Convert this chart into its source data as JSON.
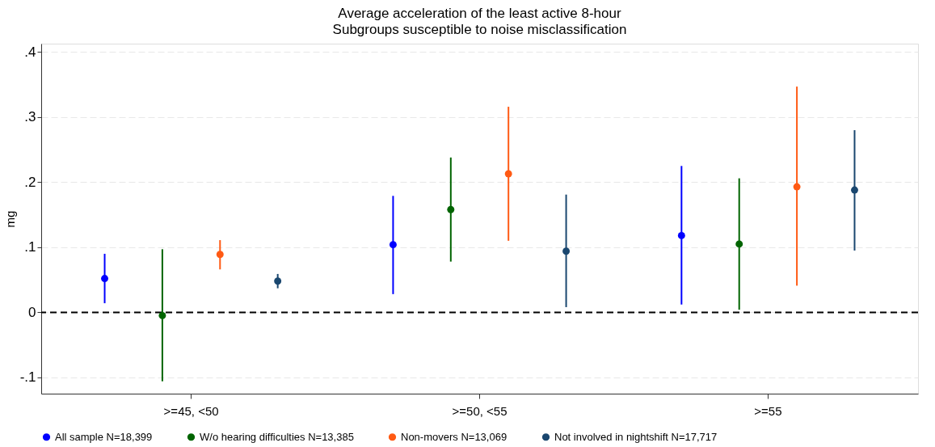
{
  "chart_data": {
    "type": "scatter",
    "title": "Average acceleration of the least active 8-hour",
    "subtitle": "Subgroups susceptible to noise misclassification",
    "ylabel": "mg",
    "categories": [
      ">=45, <50",
      ">=50, <55",
      ">=55"
    ],
    "series": [
      {
        "name": "All sample N=18,399",
        "color": "#0000ff",
        "values": [
          0.052,
          0.104,
          0.118
        ],
        "errors": [
          [
            0.014,
            0.09
          ],
          [
            0.028,
            0.179
          ],
          [
            0.012,
            0.225
          ]
        ]
      },
      {
        "name": "W/o hearing difficulties N=13,385",
        "color": "#006400",
        "values": [
          -0.005,
          0.158,
          0.105
        ],
        "errors": [
          [
            -0.106,
            0.097
          ],
          [
            0.078,
            0.238
          ],
          [
            0.004,
            0.206
          ]
        ]
      },
      {
        "name": "Non-movers N=13,069",
        "color": "#ff5a14",
        "values": [
          0.089,
          0.213,
          0.193
        ],
        "errors": [
          [
            0.066,
            0.111
          ],
          [
            0.11,
            0.316
          ],
          [
            0.041,
            0.347
          ]
        ]
      },
      {
        "name": "Not involved in nightshift N=17,717",
        "color": "#1a476f",
        "values": [
          0.048,
          0.094,
          0.188
        ],
        "errors": [
          [
            0.037,
            0.059
          ],
          [
            0.008,
            0.181
          ],
          [
            0.095,
            0.28
          ]
        ]
      }
    ],
    "ylim": [
      -0.125,
      0.413
    ],
    "yticks": [
      {
        "value": -0.1,
        "label": "-.1"
      },
      0,
      {
        "value": 0.1,
        "label": ".1"
      },
      {
        "value": 0.2,
        "label": ".2"
      },
      {
        "value": 0.3,
        "label": ".3"
      },
      {
        "value": 0.4,
        "label": ".4"
      }
    ],
    "ref_lines": [
      {
        "axis": "y",
        "value": 0,
        "color": "#000000",
        "line_style": "dashed"
      }
    ],
    "grid": "y",
    "legend": "bottom",
    "marker": "circle"
  }
}
